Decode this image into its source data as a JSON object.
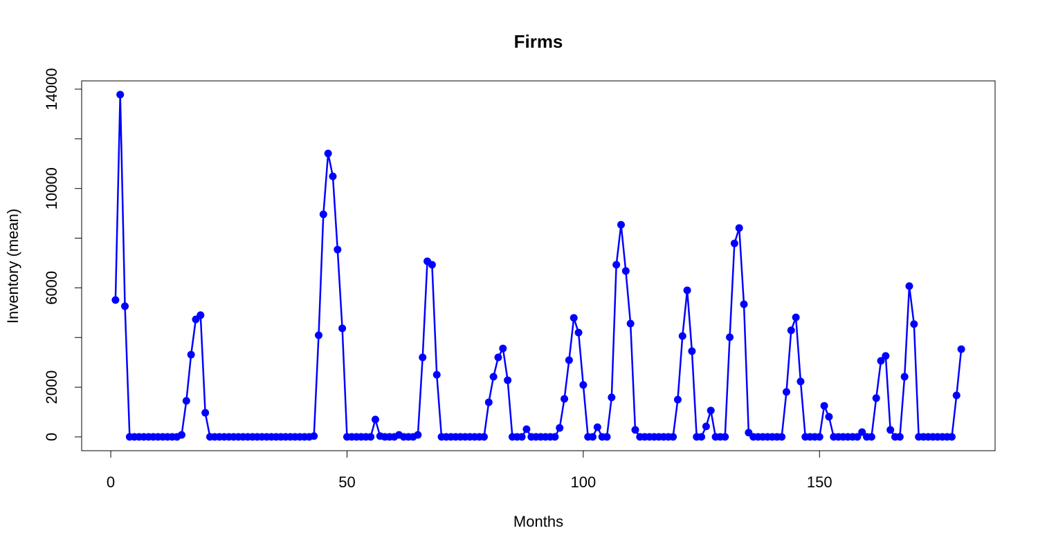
{
  "chart_data": {
    "type": "line",
    "title": "Firms",
    "x_label": "Months",
    "y_label": "Inventory (mean)",
    "x": [
      1,
      2,
      3,
      4,
      5,
      6,
      7,
      8,
      9,
      10,
      11,
      12,
      13,
      14,
      15,
      16,
      17,
      18,
      19,
      20,
      21,
      22,
      23,
      24,
      25,
      26,
      27,
      28,
      29,
      30,
      31,
      32,
      33,
      34,
      35,
      36,
      37,
      38,
      39,
      40,
      41,
      42,
      43,
      44,
      45,
      46,
      47,
      48,
      49,
      50,
      51,
      52,
      53,
      54,
      55,
      56,
      57,
      58,
      59,
      60,
      61,
      62,
      63,
      64,
      65,
      66,
      67,
      68,
      69,
      70,
      71,
      72,
      73,
      74,
      75,
      76,
      77,
      78,
      79,
      80,
      81,
      82,
      83,
      84,
      85,
      86,
      87,
      88,
      89,
      90,
      91,
      92,
      93,
      94,
      95,
      96,
      97,
      98,
      99,
      100,
      101,
      102,
      103,
      104,
      105,
      106,
      107,
      108,
      109,
      110,
      111,
      112,
      113,
      114,
      115,
      116,
      117,
      118,
      119,
      120,
      121,
      122,
      123,
      124,
      125,
      126,
      127,
      128,
      129,
      130,
      131,
      132,
      133,
      134,
      135,
      136,
      137,
      138,
      139,
      140,
      141,
      142,
      143,
      144,
      145,
      146,
      147,
      148,
      149,
      150,
      151,
      152,
      153,
      154,
      155,
      156,
      157,
      158,
      159,
      160,
      161,
      162,
      163,
      164,
      165,
      166,
      167,
      168,
      169,
      170,
      171,
      172,
      173,
      174,
      175,
      176,
      177,
      178,
      179,
      180
    ],
    "series": [
      {
        "color": "#0000ff",
        "values": [
          5510,
          13780,
          5260,
          0,
          0,
          0,
          0,
          0,
          0,
          0,
          0,
          0,
          0,
          0,
          80,
          1450,
          3310,
          4730,
          4900,
          970,
          0,
          0,
          0,
          0,
          0,
          0,
          0,
          0,
          0,
          0,
          0,
          0,
          0,
          0,
          0,
          0,
          0,
          0,
          0,
          0,
          0,
          0,
          30,
          4090,
          8960,
          11410,
          10490,
          7540,
          4370,
          0,
          0,
          0,
          0,
          0,
          0,
          700,
          30,
          0,
          0,
          0,
          80,
          0,
          0,
          0,
          80,
          3200,
          7070,
          6930,
          2500,
          0,
          0,
          0,
          0,
          0,
          0,
          0,
          0,
          0,
          0,
          1390,
          2420,
          3200,
          3560,
          2280,
          0,
          0,
          0,
          310,
          0,
          0,
          0,
          0,
          0,
          0,
          360,
          1530,
          3090,
          4790,
          4200,
          2090,
          0,
          0,
          390,
          0,
          0,
          1590,
          6930,
          8540,
          6680,
          4560,
          280,
          0,
          0,
          0,
          0,
          0,
          0,
          0,
          0,
          1500,
          4060,
          5900,
          3450,
          0,
          0,
          420,
          1060,
          0,
          0,
          0,
          4010,
          7790,
          8410,
          5340,
          170,
          0,
          0,
          0,
          0,
          0,
          0,
          0,
          1810,
          4290,
          4810,
          2230,
          0,
          0,
          0,
          0,
          1250,
          810,
          0,
          0,
          0,
          0,
          0,
          0,
          190,
          0,
          0,
          1560,
          3060,
          3260,
          280,
          0,
          0,
          2420,
          6070,
          4540,
          0,
          0,
          0,
          0,
          0,
          0,
          0,
          0,
          1670,
          3530
        ]
      }
    ],
    "xlim": [
      -6.16,
      187.16
    ],
    "ylim": [
      -557,
      14333
    ],
    "xticks": [
      0,
      50,
      100,
      150
    ],
    "yticks": [
      0,
      2000,
      6000,
      10000,
      14000
    ],
    "yticks_unlabeled": [
      4000,
      8000,
      12000
    ],
    "grid": false
  }
}
